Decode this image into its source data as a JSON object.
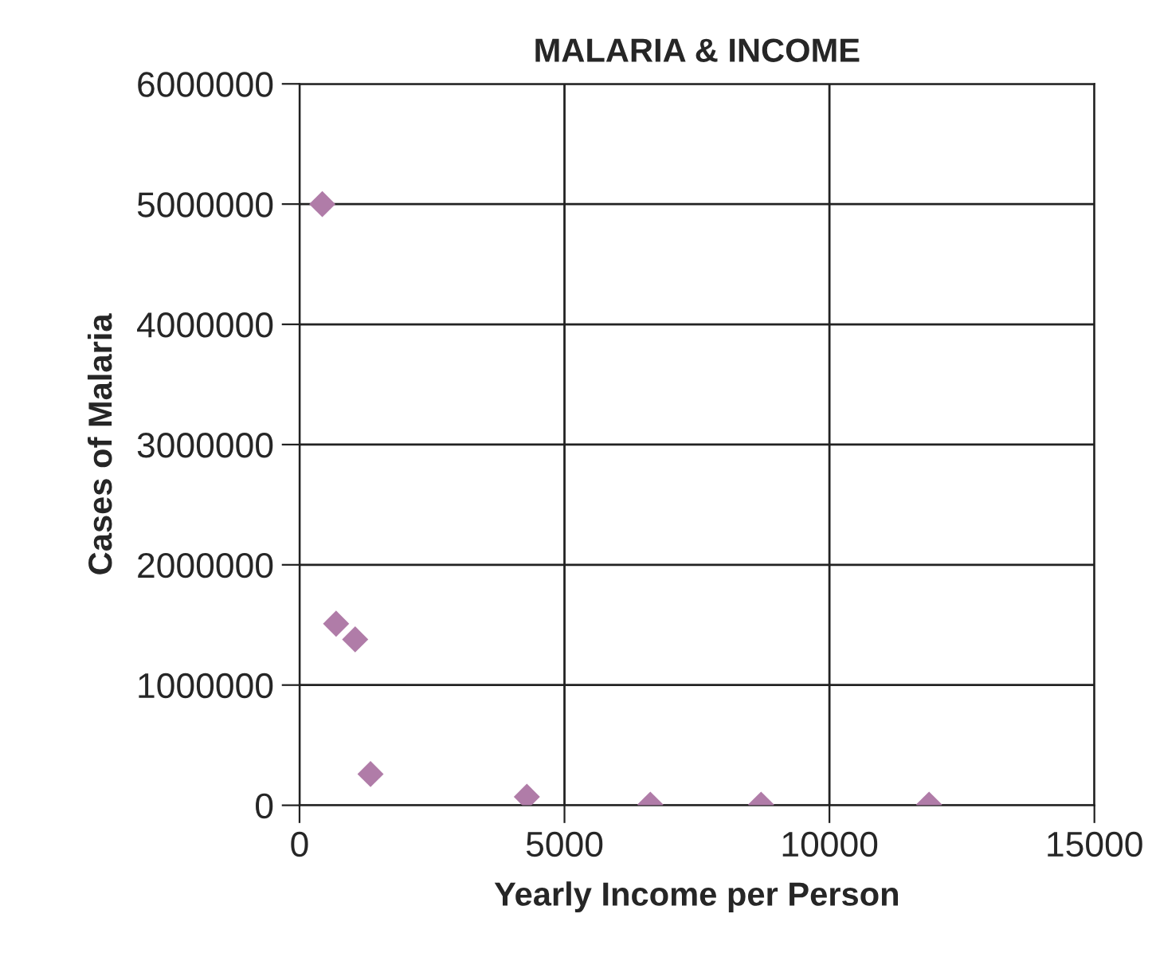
{
  "chart_data": {
    "type": "scatter",
    "title": "MALARIA & INCOME",
    "xlabel": "Yearly Income per Person",
    "ylabel": "Cases of Malaria",
    "x": [
      430,
      690,
      1050,
      1340,
      4290,
      6620,
      8710,
      11880
    ],
    "series": [
      {
        "color": "#b07ca8",
        "values": [
          5000000,
          1510000,
          1380000,
          260000,
          70000,
          5000,
          5000,
          5000
        ]
      }
    ],
    "xlim": [
      0,
      15000
    ],
    "xticks": [
      0,
      5000,
      10000,
      15000
    ],
    "ylim": [
      0,
      6000000
    ],
    "yticks": [
      0,
      1000000,
      2000000,
      3000000,
      4000000,
      5000000,
      6000000
    ],
    "grid": true,
    "marker": "diamond"
  }
}
